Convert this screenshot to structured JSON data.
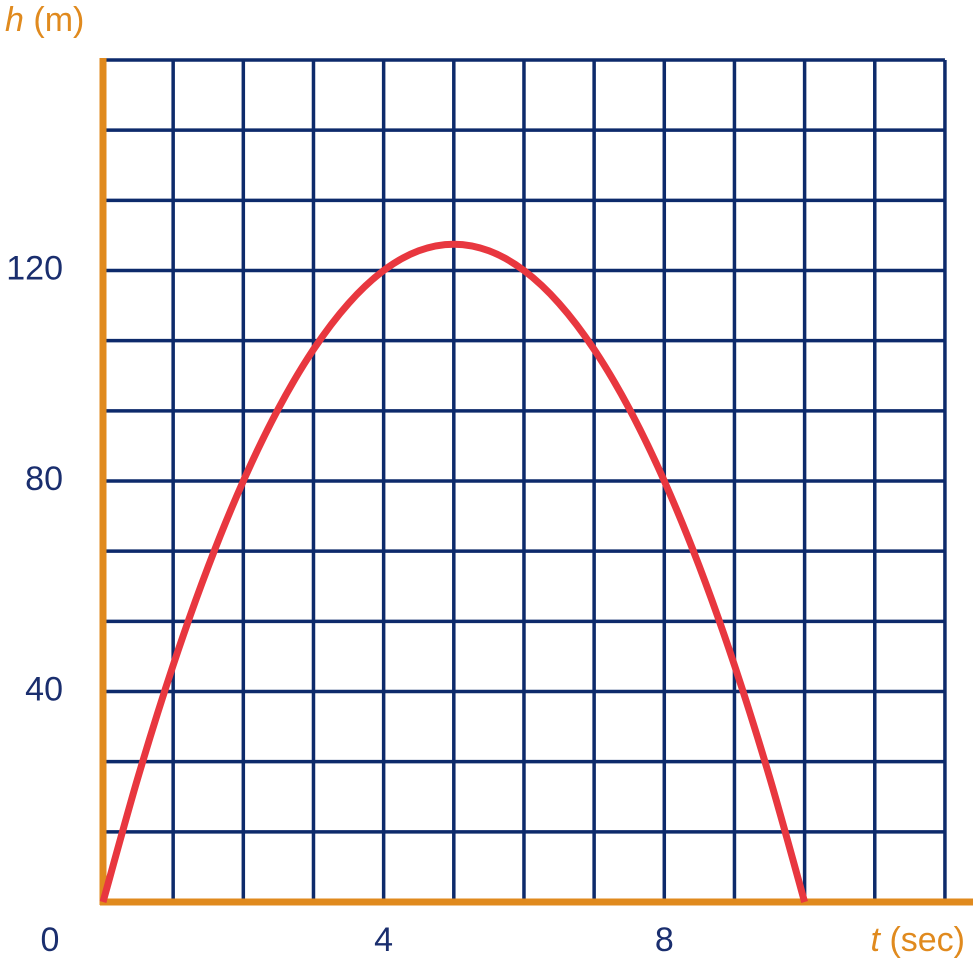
{
  "chart_data": {
    "type": "line",
    "ylabel": {
      "symbol": "h",
      "unit": "(m)"
    },
    "xlabel": {
      "symbol": "t",
      "unit": "(sec)"
    },
    "x": [
      0,
      0.5,
      1,
      1.5,
      2,
      2.5,
      3,
      3.5,
      4,
      4.5,
      5,
      5.5,
      6,
      6.5,
      7,
      7.5,
      8,
      8.5,
      9,
      9.5,
      10
    ],
    "series": [
      {
        "color": "#e8373f",
        "values": [
          0,
          23.75,
          45,
          63.75,
          80,
          93.75,
          105,
          113.75,
          120,
          123.75,
          125,
          123.75,
          120,
          113.75,
          105,
          93.75,
          80,
          63.75,
          45,
          23.75,
          0
        ]
      }
    ],
    "xlim": [
      0,
      12.4
    ],
    "ylim": [
      0,
      160
    ],
    "xticks": [
      0,
      4,
      8
    ],
    "yticks": [
      40,
      80,
      120
    ],
    "xgrid": [
      1,
      2,
      3,
      4,
      5,
      6,
      7,
      8,
      9,
      10,
      11,
      12
    ],
    "ygrid": [
      13.333,
      26.667,
      40,
      53.333,
      66.667,
      80,
      93.333,
      106.667,
      120,
      133.333,
      146.667,
      160
    ],
    "grid_color": "#0d2a6b",
    "axis_color": "#e08a1e",
    "tick_color": "#1a2e6e"
  }
}
